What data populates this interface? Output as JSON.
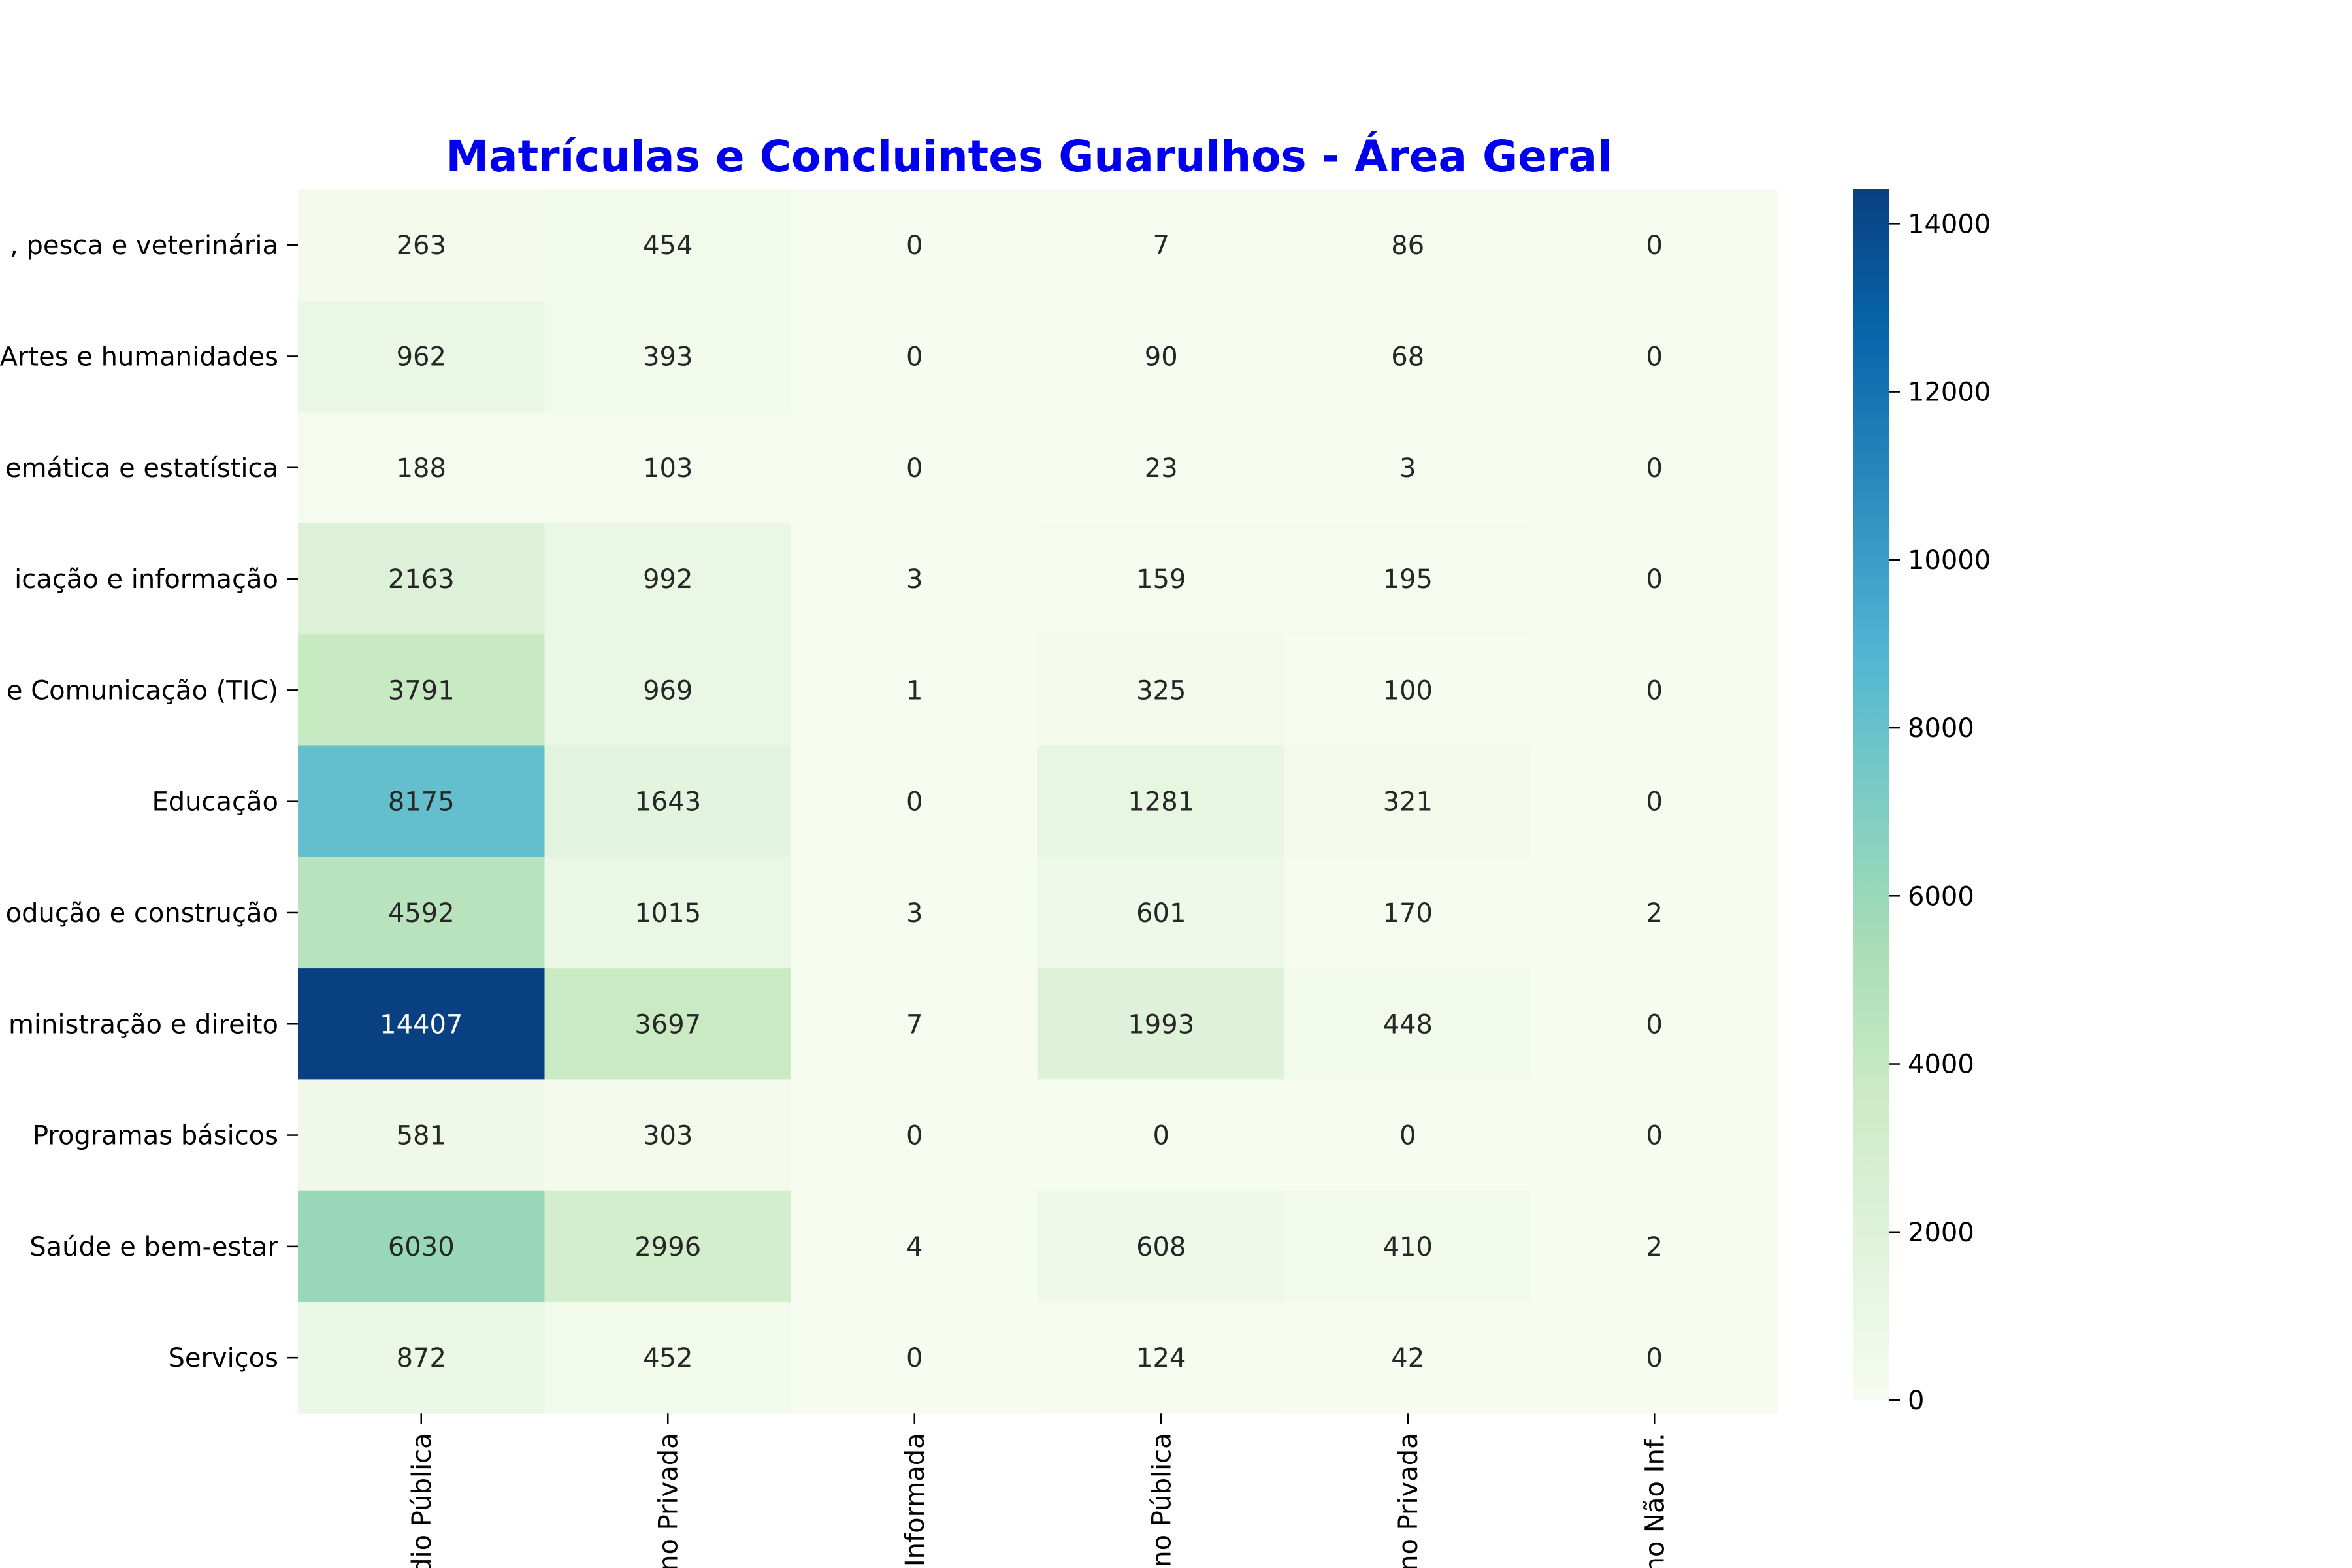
{
  "colors": {
    "title": "#0000ee",
    "colormap": "GnBu",
    "colormap_stops": [
      "#f7fcf0",
      "#e0f3db",
      "#ccebc5",
      "#a8ddb5",
      "#7bccc4",
      "#4eb3d3",
      "#2b8cbe",
      "#0868ac",
      "#084081"
    ]
  },
  "chart_data": {
    "type": "heatmap",
    "title": "Matrículas e Concluintes Guarulhos - Área Geral",
    "xlabel": "",
    "ylabel": "",
    "rows": [
      ", pesca e veterinária",
      "Artes e humanidades",
      "emática e estatística",
      "icação e informação",
      "e Comunicação (TIC)",
      "Educação",
      "odução e construção",
      "ministração e direito",
      "Programas básicos",
      "Saúde e bem-estar",
      "Serviços"
    ],
    "columns": [
      "édio Pública",
      "ino Privada",
      "o Informada",
      "nino Pública",
      "ino Privada",
      "ino Não Inf."
    ],
    "values": [
      [
        263,
        454,
        0,
        7,
        86,
        0
      ],
      [
        962,
        393,
        0,
        90,
        68,
        0
      ],
      [
        188,
        103,
        0,
        23,
        3,
        0
      ],
      [
        2163,
        992,
        3,
        159,
        195,
        0
      ],
      [
        3791,
        969,
        1,
        325,
        100,
        0
      ],
      [
        8175,
        1643,
        0,
        1281,
        321,
        0
      ],
      [
        4592,
        1015,
        3,
        601,
        170,
        2
      ],
      [
        14407,
        3697,
        7,
        1993,
        448,
        0
      ],
      [
        581,
        303,
        0,
        0,
        0,
        0
      ],
      [
        6030,
        2996,
        4,
        608,
        410,
        2
      ],
      [
        872,
        452,
        0,
        124,
        42,
        0
      ]
    ],
    "colorbar": {
      "range": [
        0,
        14407
      ],
      "ticks": [
        0,
        2000,
        4000,
        6000,
        8000,
        10000,
        12000,
        14000
      ]
    },
    "grid": false
  }
}
